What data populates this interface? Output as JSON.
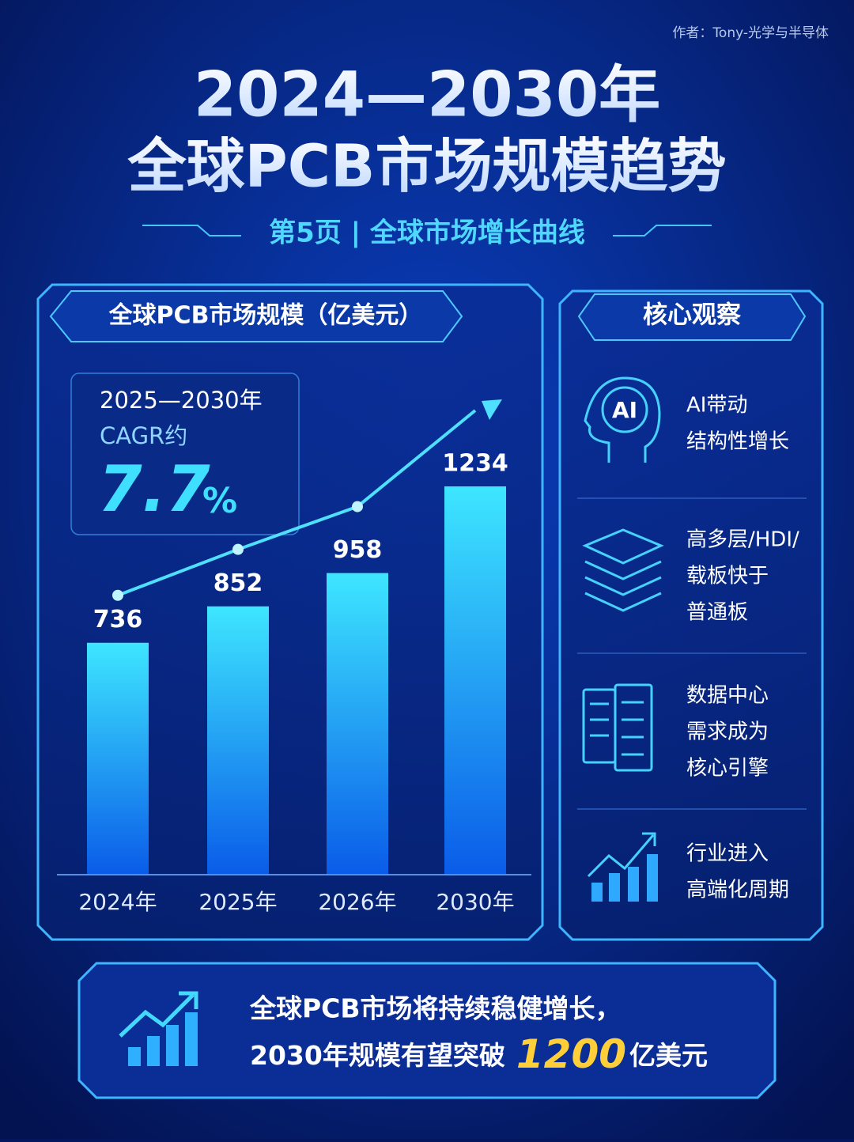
{
  "author": "作者：Tony-光学与半导体",
  "title_line1": "2024—2030年",
  "title_line2": "全球PCB市场规模趋势",
  "subtitle": "第5页 | 全球市场增长曲线",
  "chart_data": {
    "type": "bar",
    "title": "全球PCB市场规模（亿美元）",
    "categories": [
      "2024年",
      "2025年",
      "2026年",
      "2030年"
    ],
    "values": [
      736,
      852,
      958,
      1234
    ]
  },
  "cagr": {
    "label_line1": "2025—2030年",
    "label_line2": "CAGR约",
    "value": "7.7",
    "unit": "%"
  },
  "insights": {
    "title": "核心观察",
    "items": [
      {
        "lines": [
          "AI带动",
          "结构性增长"
        ]
      },
      {
        "lines": [
          "高多层/HDI/",
          "载板快于",
          "普通板"
        ]
      },
      {
        "lines": [
          "数据中心",
          "需求成为",
          "核心引擎"
        ]
      },
      {
        "lines": [
          "行业进入",
          "高端化周期"
        ]
      }
    ]
  },
  "banner": {
    "line1": "全球PCB市场将持续稳健增长，",
    "line2_prefix": "2030年规模有望突破",
    "highlight": "1200",
    "line2_suffix": "亿美元"
  }
}
